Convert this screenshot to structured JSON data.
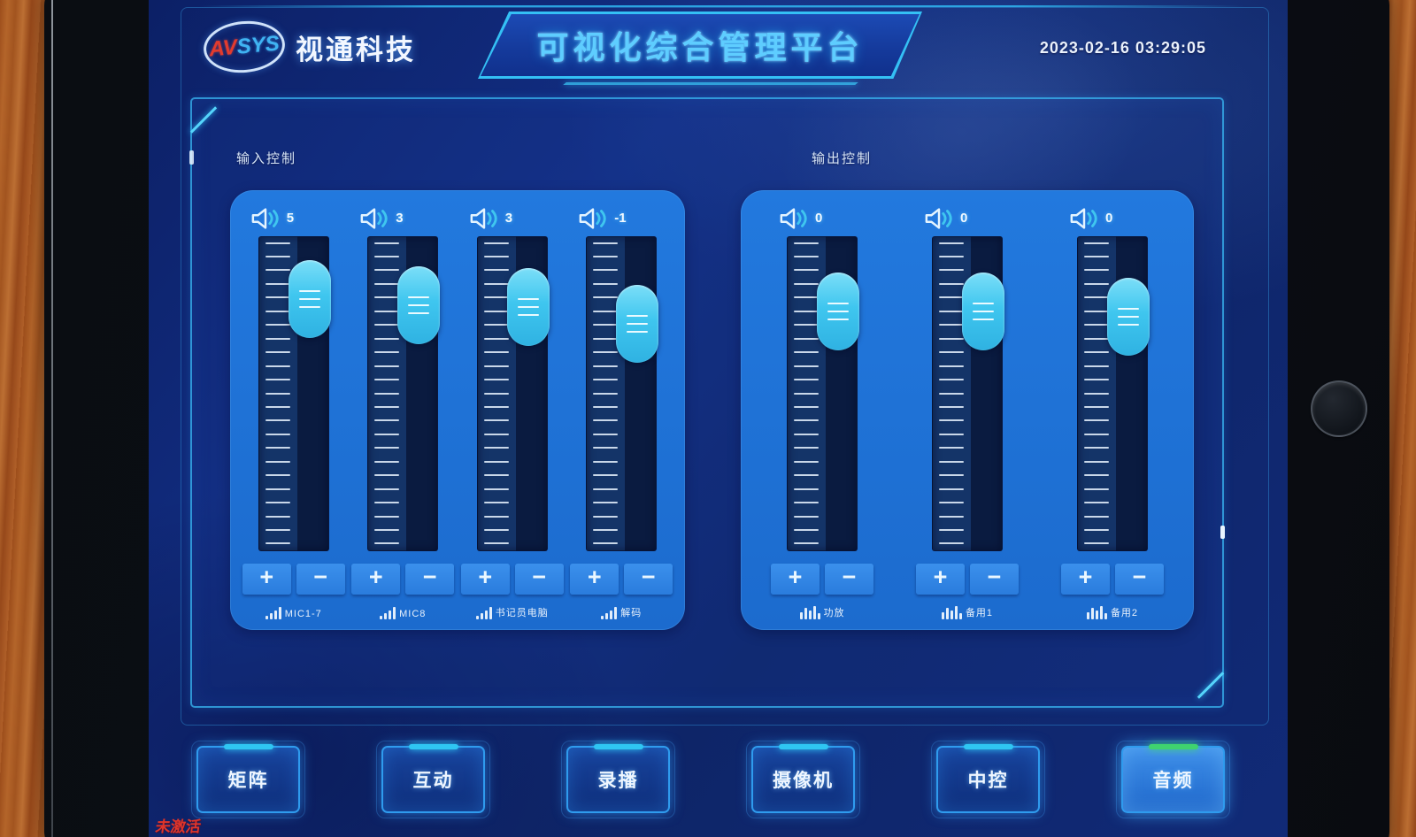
{
  "header": {
    "logo": {
      "brand_av": "AV",
      "brand_sys": "SYS",
      "company": "视通科技"
    },
    "title": "可视化综合管理平台",
    "timestamp": "2023-02-16 03:29:05"
  },
  "sections": {
    "input": {
      "label": "输入控制",
      "icon": "signal-ramp",
      "channels": [
        {
          "value": "5",
          "label": "MIC1-7",
          "handle_pct": 7.5
        },
        {
          "value": "3",
          "label": "MIC8",
          "handle_pct": 9.5
        },
        {
          "value": "3",
          "label": "书记员电脑",
          "handle_pct": 10
        },
        {
          "value": "-1",
          "label": "解码",
          "handle_pct": 15.5
        }
      ]
    },
    "output": {
      "label": "输出控制",
      "icon": "equalizer",
      "channels": [
        {
          "value": "0",
          "label": "功放",
          "handle_pct": 11.5
        },
        {
          "value": "0",
          "label": "备用1",
          "handle_pct": 11.5
        },
        {
          "value": "0",
          "label": "备用2",
          "handle_pct": 13
        }
      ]
    }
  },
  "controls": {
    "increase": "+",
    "decrease": "−"
  },
  "nav": {
    "items": [
      {
        "label": "矩阵",
        "active": false
      },
      {
        "label": "互动",
        "active": false
      },
      {
        "label": "录播",
        "active": false
      },
      {
        "label": "摄像机",
        "active": false
      },
      {
        "label": "中控",
        "active": false
      },
      {
        "label": "音频",
        "active": true
      }
    ]
  },
  "status": {
    "bottom_left_text": "未激活"
  },
  "colors": {
    "accent_cyan": "#2fb7f2",
    "active_green": "#3fd36f",
    "fader_handle": "#3fc6ef",
    "group_panel_blue": "#1e73d7",
    "logo_red": "#e23b2e",
    "logo_blue": "#3fb3f2",
    "alert_red": "#e0352b"
  }
}
